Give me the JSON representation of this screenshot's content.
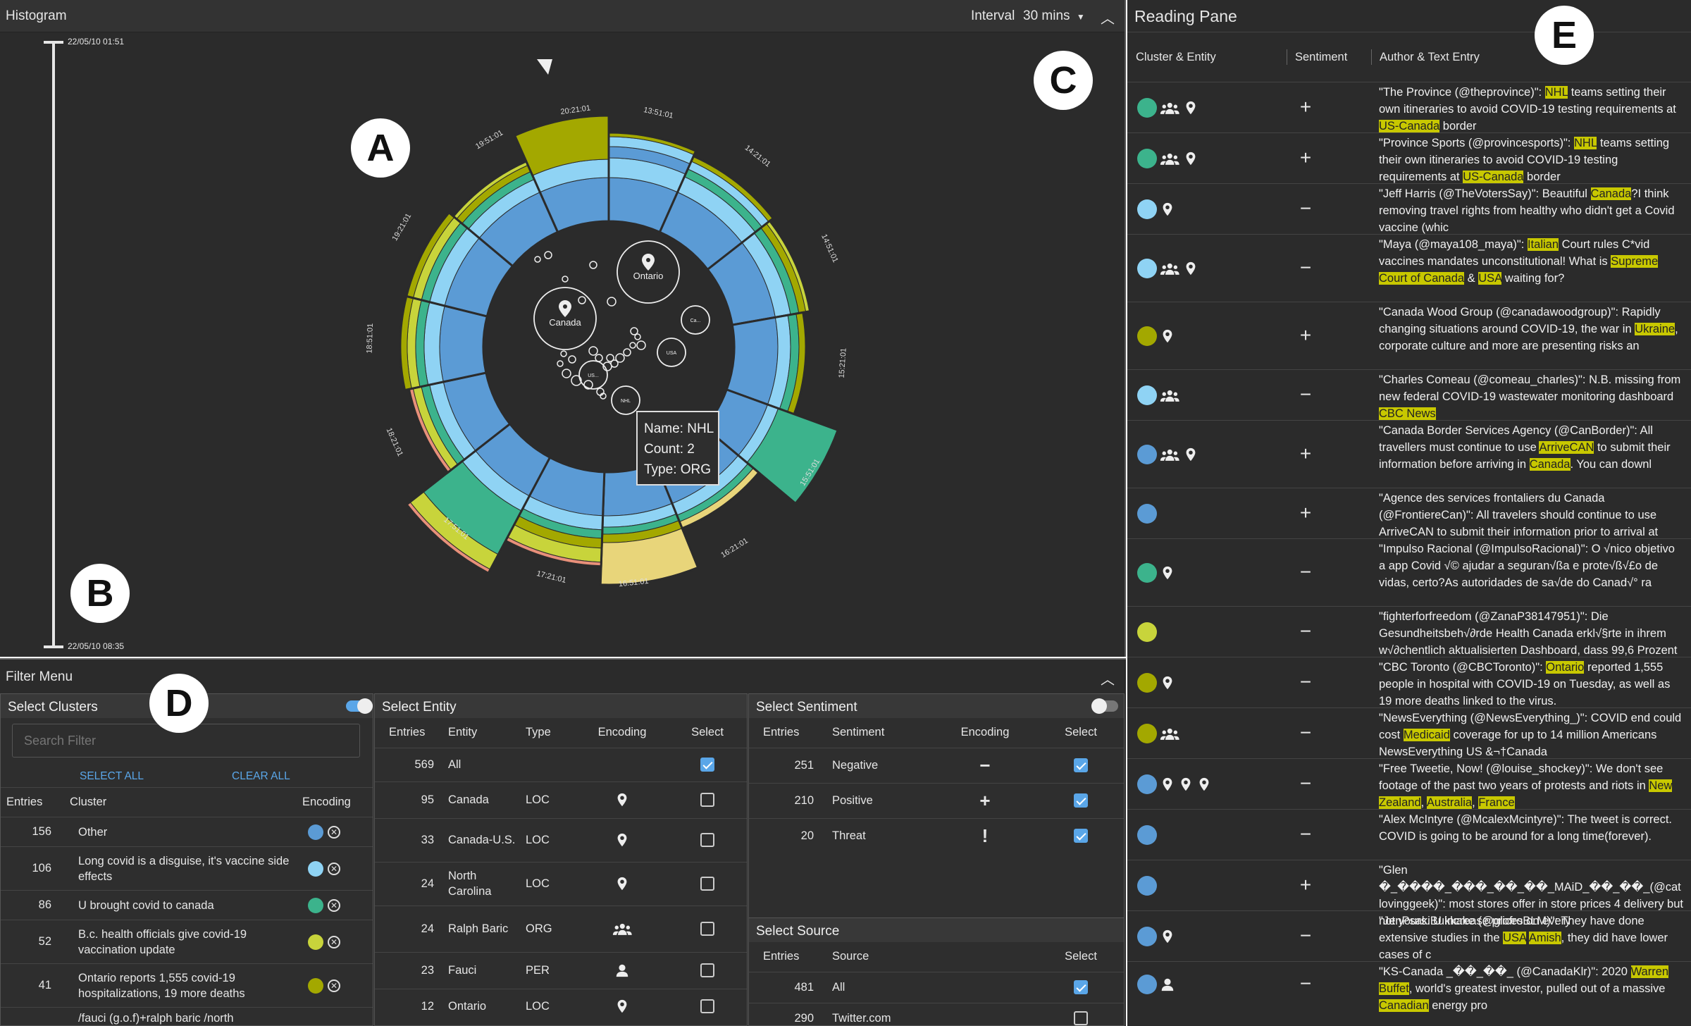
{
  "histogram": {
    "title": "Histogram",
    "interval_label": "Interval",
    "interval_value": "30 mins",
    "time_top": "22/05/10 01:51",
    "time_bottom": "22/05/10 08:35",
    "tick_labels": [
      "20:21:01",
      "13:51:01",
      "14:21:01",
      "14:51:01",
      "15:21:01",
      "15:51:01",
      "16:21:01",
      "16:51:01",
      "17:21:01",
      "17:51:01",
      "18:21:01",
      "18:51:01",
      "19:21:01",
      "19:51:01"
    ],
    "entity_bubbles": [
      {
        "label": "Ontario"
      },
      {
        "label": "Canada"
      },
      {
        "label": "Ca..."
      },
      {
        "label": "USA"
      },
      {
        "label": "US..."
      },
      {
        "label": "NHL"
      }
    ],
    "tooltip": {
      "name": "Name: NHL",
      "count": "Count: 2",
      "type": "Type: ORG"
    }
  },
  "badges": {
    "a": "A",
    "b": "B",
    "c": "C",
    "d": "D",
    "e": "E"
  },
  "colors": {
    "blue": "#5b9bd5",
    "light_blue": "#8fd3f4",
    "teal": "#3cb38c",
    "olive": "#a3a800",
    "yellow_green": "#c8d43b",
    "pale_yellow": "#e8d57a",
    "salmon": "#e8907a"
  },
  "filter": {
    "title": "Filter Menu",
    "clusters": {
      "title": "Select Clusters",
      "search_placeholder": "Search Filter",
      "select_all": "SELECT ALL",
      "clear_all": "CLEAR ALL",
      "headers": {
        "entries": "Entries",
        "cluster": "Cluster",
        "encoding": "Encoding"
      },
      "rows": [
        {
          "entries": "156",
          "cluster": "Other",
          "color": "#5b9bd5"
        },
        {
          "entries": "106",
          "cluster": "Long covid is a disguise, it's vaccine side effects",
          "color": "#8fd3f4"
        },
        {
          "entries": "86",
          "cluster": "U brought covid to canada",
          "color": "#3cb38c"
        },
        {
          "entries": "52",
          "cluster": "B.c. health officials give covid-19 vaccination update",
          "color": "#c8d43b"
        },
        {
          "entries": "41",
          "cluster": "Ontario reports 1,555 covid-19 hospitalizations, 19 more deaths",
          "color": "#a3a800"
        },
        {
          "entries": "",
          "cluster": "/fauci (g.o.f)+ralph baric /north",
          "color": ""
        }
      ]
    },
    "entity": {
      "title": "Select Entity",
      "headers": {
        "entries": "Entries",
        "entity": "Entity",
        "type": "Type",
        "encoding": "Encoding",
        "select": "Select"
      },
      "rows": [
        {
          "entries": "569",
          "entity": "All",
          "type": "",
          "icon": "",
          "checked": true
        },
        {
          "entries": "95",
          "entity": "Canada",
          "type": "LOC",
          "icon": "location-pin",
          "checked": false
        },
        {
          "entries": "33",
          "entity": "Canada-U.S.",
          "type": "LOC",
          "icon": "location-pin",
          "checked": false
        },
        {
          "entries": "24",
          "entity": "North Carolina",
          "type": "LOC",
          "icon": "location-pin",
          "checked": false
        },
        {
          "entries": "24",
          "entity": "Ralph Baric",
          "type": "ORG",
          "icon": "group",
          "checked": false
        },
        {
          "entries": "23",
          "entity": "Fauci",
          "type": "PER",
          "icon": "person",
          "checked": false
        },
        {
          "entries": "12",
          "entity": "Ontario",
          "type": "LOC",
          "icon": "location-pin",
          "checked": false
        }
      ]
    },
    "sentiment": {
      "title": "Select Sentiment",
      "headers": {
        "entries": "Entries",
        "sentiment": "Sentiment",
        "encoding": "Encoding",
        "select": "Select"
      },
      "rows": [
        {
          "entries": "251",
          "sentiment": "Negative",
          "symbol": "−",
          "checked": true
        },
        {
          "entries": "210",
          "sentiment": "Positive",
          "symbol": "+",
          "checked": true
        },
        {
          "entries": "20",
          "sentiment": "Threat",
          "symbol": "!",
          "checked": true
        }
      ]
    },
    "source": {
      "title": "Select Source",
      "headers": {
        "entries": "Entries",
        "source": "Source",
        "select": "Select"
      },
      "rows": [
        {
          "entries": "481",
          "source": "All",
          "checked": true
        },
        {
          "entries": "290",
          "source": "Twitter.com",
          "checked": false
        }
      ]
    }
  },
  "reading": {
    "title": "Reading Pane",
    "headers": {
      "cluster": "Cluster & Entity",
      "sentiment": "Sentiment",
      "author": "Author & Text Entry"
    },
    "rows": [
      {
        "color": "#3cb38c",
        "icons": [
          "group",
          "pin"
        ],
        "sentiment": "+",
        "segs": [
          [
            "\"The Province (@theprovince)\": ",
            0
          ],
          [
            "NHL",
            1
          ],
          [
            " teams setting their own itineraries to avoid COVID-19 testing requirements at ",
            0
          ],
          [
            "US-Canada",
            1
          ],
          [
            " border",
            0
          ]
        ]
      },
      {
        "color": "#3cb38c",
        "icons": [
          "group",
          "pin"
        ],
        "sentiment": "+",
        "segs": [
          [
            "\"Province Sports (@provincesports)\": ",
            0
          ],
          [
            "NHL",
            1
          ],
          [
            " teams setting their own itineraries to avoid COVID-19 testing requirements at ",
            0
          ],
          [
            "US-Canada",
            1
          ],
          [
            " border",
            0
          ]
        ]
      },
      {
        "color": "#8fd3f4",
        "icons": [
          "pin"
        ],
        "sentiment": "−",
        "segs": [
          [
            "\"Jeff Harris (@TheVotersSay)\": Beautiful ",
            0
          ],
          [
            "Canada",
            1
          ],
          [
            "?I think removing travel rights from healthy who didn't get a Covid vaccine (whic",
            0
          ]
        ]
      },
      {
        "color": "#8fd3f4",
        "icons": [
          "group",
          "pin"
        ],
        "sentiment": "−",
        "segs": [
          [
            "\"Maya (@maya108_maya)\": ",
            0
          ],
          [
            "Italian",
            1
          ],
          [
            " Court rules C*vid vaccines mandates unconstitutional! What is ",
            0
          ],
          [
            "Supreme Court of Canada",
            1
          ],
          [
            " & ",
            0
          ],
          [
            "USA",
            1
          ],
          [
            " waiting for?",
            0
          ]
        ]
      },
      {
        "color": "#a3a800",
        "icons": [
          "pin"
        ],
        "sentiment": "+",
        "segs": [
          [
            "\"Canada Wood Group (@canadawoodgroup)\": Rapidly changing situations around COVID-19, the war in ",
            0
          ],
          [
            "Ukraine",
            1
          ],
          [
            ", corporate culture and more are presenting risks an",
            0
          ]
        ]
      },
      {
        "color": "#8fd3f4",
        "icons": [
          "group"
        ],
        "sentiment": "−",
        "segs": [
          [
            "\"Charles Comeau (@comeau_charles)\": N.B. missing from new federal COVID-19 wastewater monitoring dashboard ",
            0
          ],
          [
            "CBC News",
            1
          ]
        ]
      },
      {
        "color": "#5b9bd5",
        "icons": [
          "group",
          "pin"
        ],
        "sentiment": "+",
        "segs": [
          [
            "\"Canada Border Services Agency (@CanBorder)\": All travellers must continue to use ",
            0
          ],
          [
            "ArriveCAN",
            1
          ],
          [
            " to submit their information before arriving in ",
            0
          ],
          [
            "Canada",
            1
          ],
          [
            ". You can downl",
            0
          ]
        ]
      },
      {
        "color": "#5b9bd5",
        "icons": [],
        "sentiment": "+",
        "segs": [
          [
            "\"Agence des services frontaliers du Canada (@FrontiereCan)\": All travelers should continue to use ArriveCAN to submit their information prior to arrival at",
            0
          ]
        ]
      },
      {
        "color": "#3cb38c",
        "icons": [
          "pin"
        ],
        "sentiment": "−",
        "segs": [
          [
            "\"Impulso Racional (@ImpulsoRacional)\": O √nico objetivo a app Covid √© ajudar a seguran√ßa e prote√ß√£o de vidas, certo?As autoridades de sa√de do Canad√° ra",
            0
          ]
        ]
      },
      {
        "color": "#c8d43b",
        "icons": [],
        "sentiment": "−",
        "segs": [
          [
            "\"fighterforfreedom (@ZanaP38147951)\": Die Gesundheitsbeh√∂rde Health Canada erkl√§rte in ihrem w√∂chentlich aktualisierten Dashboard, dass 99,6 Prozent",
            0
          ]
        ]
      },
      {
        "color": "#a3a800",
        "icons": [
          "pin"
        ],
        "sentiment": "−",
        "segs": [
          [
            "\"CBC Toronto (@CBCToronto)\": ",
            0
          ],
          [
            "Ontario",
            1
          ],
          [
            " reported 1,555 people in hospital with COVID-19 on Tuesday, as well as 19 more deaths linked to the virus.",
            0
          ]
        ]
      },
      {
        "color": "#a3a800",
        "icons": [
          "group"
        ],
        "sentiment": "−",
        "segs": [
          [
            "\"NewsEverything (@NewsEverything_)\": COVID end could cost ",
            0
          ],
          [
            "Medicaid",
            1
          ],
          [
            " coverage for up to 14 million Americans NewsEverything US &¬†Canada",
            0
          ]
        ]
      },
      {
        "color": "#5b9bd5",
        "icons": [
          "pin",
          "pin",
          "pin"
        ],
        "sentiment": "−",
        "segs": [
          [
            "\"Free Tweetie, Now! (@louise_shockey)\": We don't see footage of the past two years of protests and riots in ",
            0
          ],
          [
            "New Zealand",
            1
          ],
          [
            ", ",
            0
          ],
          [
            "Australia",
            1
          ],
          [
            ", ",
            0
          ],
          [
            "France",
            1
          ]
        ]
      },
      {
        "color": "#5b9bd5",
        "icons": [],
        "sentiment": "−",
        "segs": [
          [
            "\"Alex McIntyre (@McalexMcintyre)\": The tweet is correct. COVID is going to be around for a long time(forever).",
            0
          ]
        ]
      },
      {
        "color": "#5b9bd5",
        "icons": [],
        "sentiment": "+",
        "segs": [
          [
            "\"Glen �_����_���_��_��_MAiD_��_��_(@catlovinggeek)\": most stores offer in store prices 4 delivery but not yours. U increase prices on every",
            0
          ]
        ]
      },
      {
        "color": "#5b9bd5",
        "icons": [
          "pin"
        ],
        "sentiment": "−",
        "segs": [
          [
            "\"JenPsakiBukkake (@glofroBLM)\": They have done extensive studies in the ",
            0
          ],
          [
            "USA",
            1
          ],
          [
            " ",
            0
          ],
          [
            "Amish",
            1
          ],
          [
            ", they did have lower cases of c",
            0
          ]
        ]
      },
      {
        "color": "#5b9bd5",
        "icons": [
          "person"
        ],
        "sentiment": "−",
        "segs": [
          [
            "\"KS-Canada _��_��_ (@CanadaKlr)\": 2020 ",
            0
          ],
          [
            "Warren Buffet",
            1
          ],
          [
            ", world's greatest investor, pulled out of a massive ",
            0
          ],
          [
            "Canadian",
            1
          ],
          [
            " energy pro",
            0
          ]
        ]
      }
    ]
  }
}
